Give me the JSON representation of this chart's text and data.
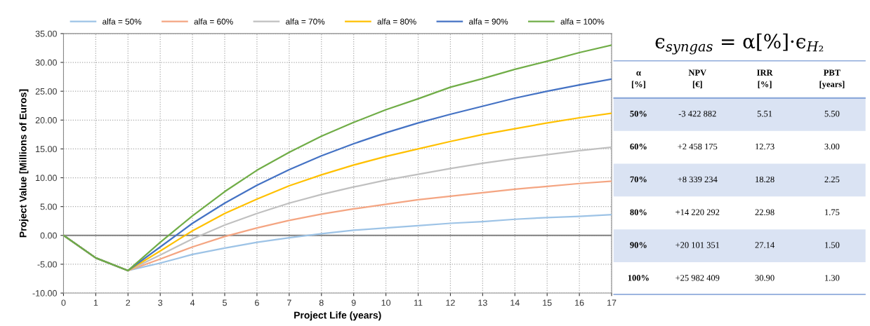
{
  "chart_data": [
    {
      "type": "line",
      "xlabel": "Project Life (years)",
      "ylabel": "Project Value [Millions of Euros]",
      "x": [
        0,
        1,
        2,
        3,
        4,
        5,
        6,
        7,
        8,
        9,
        10,
        11,
        12,
        13,
        14,
        15,
        16,
        17
      ],
      "series": [
        {
          "name": "alfa = 50%",
          "color": "#9dc3e6",
          "values": [
            0,
            -3.9,
            -6.1,
            -4.8,
            -3.3,
            -2.2,
            -1.2,
            -0.4,
            0.3,
            0.9,
            1.3,
            1.7,
            2.1,
            2.4,
            2.8,
            3.1,
            3.3,
            3.6
          ]
        },
        {
          "name": "alfa = 60%",
          "color": "#f4a582",
          "values": [
            0,
            -3.9,
            -6.1,
            -4.1,
            -2.0,
            -0.2,
            1.3,
            2.6,
            3.7,
            4.6,
            5.4,
            6.2,
            6.8,
            7.4,
            8.0,
            8.5,
            9.0,
            9.4
          ]
        },
        {
          "name": "alfa = 70%",
          "color": "#c0c0c0",
          "values": [
            0,
            -3.9,
            -6.1,
            -3.4,
            -0.6,
            1.8,
            3.8,
            5.6,
            7.1,
            8.4,
            9.6,
            10.6,
            11.6,
            12.5,
            13.3,
            14.0,
            14.7,
            15.3
          ]
        },
        {
          "name": "alfa = 80%",
          "color": "#ffc000",
          "values": [
            0,
            -3.9,
            -6.1,
            -2.7,
            0.8,
            3.8,
            6.3,
            8.6,
            10.5,
            12.2,
            13.7,
            15.0,
            16.3,
            17.5,
            18.5,
            19.5,
            20.4,
            21.2
          ]
        },
        {
          "name": "alfa = 90%",
          "color": "#4472c4",
          "values": [
            0,
            -3.9,
            -6.1,
            -2.0,
            2.1,
            5.6,
            8.7,
            11.4,
            13.8,
            15.9,
            17.8,
            19.5,
            21.0,
            22.4,
            23.8,
            25.0,
            26.1,
            27.1
          ]
        },
        {
          "name": "alfa = 100%",
          "color": "#70ad47",
          "values": [
            0,
            -3.9,
            -6.1,
            -1.2,
            3.4,
            7.6,
            11.3,
            14.4,
            17.2,
            19.6,
            21.8,
            23.7,
            25.7,
            27.2,
            28.8,
            30.2,
            31.7,
            33.0
          ]
        }
      ],
      "xlim": [
        0,
        17
      ],
      "xticks": [
        0,
        1,
        2,
        3,
        4,
        5,
        6,
        7,
        8,
        9,
        10,
        11,
        12,
        13,
        14,
        15,
        16,
        17
      ],
      "ylim": [
        -10,
        35
      ],
      "yticks": [
        {
          "value": -10,
          "label": "-10.00"
        },
        {
          "value": -5,
          "label": "-5.00"
        },
        {
          "value": 0,
          "label": "0.00"
        },
        {
          "value": 5,
          "label": "5.00"
        },
        {
          "value": 10,
          "label": "10.00"
        },
        {
          "value": 15,
          "label": "15.00"
        },
        {
          "value": 20,
          "label": "20.00"
        },
        {
          "value": 25,
          "label": "25.00"
        },
        {
          "value": 30,
          "label": "30.00"
        },
        {
          "value": 35,
          "label": "35.00"
        }
      ],
      "ref_lines": [
        {
          "axis": "y",
          "value": 0,
          "color": "#808080",
          "line_style": "solid"
        }
      ],
      "grid": true,
      "legend": "top",
      "marker": "none",
      "line_style": "solid"
    },
    {
      "type": "heatmap",
      "title": "ϵ$_{syngas}$ = α[%]·ϵ$_{H₂}$",
      "ylabel": "α\n[%]",
      "categories": [
        "NPV\n[€]",
        "IRR\n[%]",
        "PBT\n[years]"
      ],
      "y_categories": [
        "50%",
        "60%",
        "70%",
        "80%",
        "90%",
        "100%"
      ],
      "cells": [
        [
          null,
          null,
          null
        ],
        [
          null,
          null,
          null
        ],
        [
          null,
          null,
          null
        ],
        [
          null,
          null,
          null
        ],
        [
          null,
          null,
          null
        ],
        [
          null,
          null,
          null
        ]
      ],
      "cell_labels": [
        [
          "-3 422 882",
          "5.51",
          "5.50"
        ],
        [
          "+2 458 175",
          "12.73",
          "3.00"
        ],
        [
          "+8 339 234",
          "18.28",
          "2.25"
        ],
        [
          "+14 220 292",
          "22.98",
          "1.75"
        ],
        [
          "+20 101 351",
          "27.14",
          "1.50"
        ],
        [
          "+25 982 409",
          "30.90",
          "1.30"
        ]
      ]
    }
  ]
}
